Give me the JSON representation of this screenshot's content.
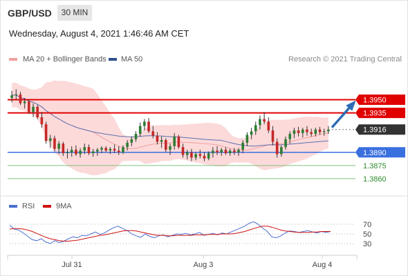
{
  "header": {
    "pair": "GBP/USD",
    "timeframe": "30 MIN"
  },
  "date_line": "Wednesday, August 4, 2021 1:46:46 AM CET",
  "legend": {
    "bollinger": "MA 20 + Bollinger Bands",
    "ma50": "MA 50",
    "copyright": "Research © 2021 Trading Central"
  },
  "rsi_legend": {
    "rsi": "RSI",
    "ma9": "9MA"
  },
  "colors": {
    "up": "#2e7d32",
    "down": "#c62828",
    "resistance": "#e00000",
    "support_blue": "#3a6fe0",
    "support_green": "#2e8b2e",
    "band_fill": "#fbd4d4",
    "ma20": "#f2a0a0",
    "ma50": "#5a6fb0",
    "rsi": "#4a6fd0",
    "rsi_ma": "#d01010",
    "current": "#333333",
    "arrow": "#2d6db5"
  },
  "chart_data": [
    {
      "type": "candlestick",
      "title": "GBP/USD",
      "ylim": [
        1.3845,
        1.3985
      ],
      "levels": [
        {
          "value": 1.395,
          "label": "1.3950",
          "kind": "resistance"
        },
        {
          "value": 1.3935,
          "label": "1.3935",
          "kind": "resistance"
        },
        {
          "value": 1.3916,
          "label": "1.3916",
          "kind": "current"
        },
        {
          "value": 1.389,
          "label": "1.3890",
          "kind": "support"
        },
        {
          "value": 1.3875,
          "label": "1.3875",
          "kind": "support"
        },
        {
          "value": 1.386,
          "label": "1.3860",
          "kind": "support"
        }
      ],
      "x_ticks": [
        "Jul 31",
        "Aug 3",
        "Aug 4"
      ],
      "projection": {
        "from": 1.3916,
        "to": 1.395
      },
      "series_candles": [
        [
          1.3952,
          1.396,
          1.3947,
          1.3955
        ],
        [
          1.3955,
          1.3962,
          1.395,
          1.3956
        ],
        [
          1.3956,
          1.3959,
          1.3944,
          1.3946
        ],
        [
          1.3946,
          1.3952,
          1.394,
          1.3948
        ],
        [
          1.3948,
          1.395,
          1.3934,
          1.3936
        ],
        [
          1.3936,
          1.3946,
          1.393,
          1.3942
        ],
        [
          1.3942,
          1.3944,
          1.3928,
          1.393
        ],
        [
          1.393,
          1.3936,
          1.3918,
          1.3922
        ],
        [
          1.3922,
          1.3925,
          1.39,
          1.3903
        ],
        [
          1.3903,
          1.391,
          1.3895,
          1.3906
        ],
        [
          1.3906,
          1.3909,
          1.3891,
          1.3894
        ],
        [
          1.3894,
          1.3903,
          1.3888,
          1.39
        ],
        [
          1.39,
          1.3902,
          1.3886,
          1.3889
        ],
        [
          1.3889,
          1.3894,
          1.3883,
          1.389
        ],
        [
          1.389,
          1.3897,
          1.3885,
          1.3893
        ],
        [
          1.3893,
          1.3898,
          1.3886,
          1.3888
        ],
        [
          1.3888,
          1.3895,
          1.3884,
          1.3892
        ],
        [
          1.3892,
          1.39,
          1.3888,
          1.3896
        ],
        [
          1.3896,
          1.3899,
          1.3887,
          1.3889
        ],
        [
          1.3889,
          1.3894,
          1.3885,
          1.3891
        ],
        [
          1.3891,
          1.3895,
          1.3886,
          1.3893
        ],
        [
          1.3893,
          1.3897,
          1.3889,
          1.3895
        ],
        [
          1.3895,
          1.3897,
          1.389,
          1.3892
        ],
        [
          1.3892,
          1.3896,
          1.3888,
          1.3894
        ],
        [
          1.3894,
          1.3899,
          1.3889,
          1.3892
        ],
        [
          1.3892,
          1.3897,
          1.3887,
          1.389
        ],
        [
          1.389,
          1.3898,
          1.3888,
          1.3896
        ],
        [
          1.3896,
          1.3904,
          1.3892,
          1.3901
        ],
        [
          1.3901,
          1.3908,
          1.3897,
          1.3905
        ],
        [
          1.3905,
          1.3914,
          1.3902,
          1.3911
        ],
        [
          1.3911,
          1.3924,
          1.3908,
          1.392
        ],
        [
          1.392,
          1.3928,
          1.3915,
          1.3925
        ],
        [
          1.3925,
          1.3929,
          1.3912,
          1.3914
        ],
        [
          1.3914,
          1.392,
          1.3906,
          1.3909
        ],
        [
          1.3909,
          1.3913,
          1.3899,
          1.3902
        ],
        [
          1.3902,
          1.3908,
          1.3895,
          1.3904
        ],
        [
          1.3904,
          1.3906,
          1.389,
          1.3893
        ],
        [
          1.3893,
          1.39,
          1.3887,
          1.3897
        ],
        [
          1.3897,
          1.3912,
          1.3893,
          1.3908
        ],
        [
          1.3908,
          1.391,
          1.3894,
          1.3896
        ],
        [
          1.3896,
          1.39,
          1.3884,
          1.3887
        ],
        [
          1.3887,
          1.3893,
          1.3882,
          1.389
        ],
        [
          1.389,
          1.3894,
          1.388,
          1.3884
        ],
        [
          1.3884,
          1.389,
          1.3881,
          1.3888
        ],
        [
          1.3888,
          1.3893,
          1.3883,
          1.3886
        ],
        [
          1.3886,
          1.389,
          1.388,
          1.3883
        ],
        [
          1.3883,
          1.3891,
          1.3881,
          1.3889
        ],
        [
          1.3889,
          1.3896,
          1.3884,
          1.3892
        ],
        [
          1.3892,
          1.3897,
          1.3887,
          1.389
        ],
        [
          1.389,
          1.3895,
          1.3886,
          1.3893
        ],
        [
          1.3893,
          1.3896,
          1.3887,
          1.3889
        ],
        [
          1.3889,
          1.3894,
          1.3886,
          1.3892
        ],
        [
          1.3892,
          1.3895,
          1.3887,
          1.389
        ],
        [
          1.389,
          1.3895,
          1.3886,
          1.3893
        ],
        [
          1.3893,
          1.3904,
          1.3889,
          1.3901
        ],
        [
          1.3901,
          1.3913,
          1.3897,
          1.391
        ],
        [
          1.391,
          1.3918,
          1.3905,
          1.3914
        ],
        [
          1.3914,
          1.3925,
          1.391,
          1.3921
        ],
        [
          1.3921,
          1.3932,
          1.3916,
          1.3928
        ],
        [
          1.3928,
          1.3936,
          1.3922,
          1.3925
        ],
        [
          1.3925,
          1.393,
          1.3912,
          1.3915
        ],
        [
          1.3915,
          1.392,
          1.3898,
          1.3902
        ],
        [
          1.3902,
          1.3906,
          1.3884,
          1.3888
        ],
        [
          1.3888,
          1.3898,
          1.3885,
          1.3896
        ],
        [
          1.3896,
          1.3908,
          1.3893,
          1.3905
        ],
        [
          1.3905,
          1.3914,
          1.39,
          1.3911
        ],
        [
          1.3911,
          1.3918,
          1.3906,
          1.3915
        ],
        [
          1.3915,
          1.3919,
          1.3908,
          1.3912
        ],
        [
          1.3912,
          1.3918,
          1.3907,
          1.3916
        ],
        [
          1.3916,
          1.392,
          1.3909,
          1.3913
        ],
        [
          1.3913,
          1.3917,
          1.3908,
          1.3911
        ],
        [
          1.3911,
          1.3918,
          1.3908,
          1.3916
        ],
        [
          1.3916,
          1.3919,
          1.391,
          1.3913
        ],
        [
          1.3913,
          1.3917,
          1.3909,
          1.3914
        ],
        [
          1.3914,
          1.392,
          1.3911,
          1.3916
        ]
      ]
    },
    {
      "type": "line",
      "title": "RSI",
      "ylim": [
        20,
        80
      ],
      "y_ticks": [
        70,
        50,
        30
      ],
      "series": [
        {
          "name": "RSI",
          "values": [
            68,
            60,
            58,
            52,
            45,
            38,
            36,
            40,
            33,
            30,
            36,
            32,
            35,
            40,
            44,
            42,
            47,
            46,
            50,
            54,
            49,
            52,
            58,
            63,
            66,
            61,
            57,
            50,
            46,
            43,
            50,
            45,
            42,
            46,
            48,
            44,
            47,
            50,
            49,
            51,
            48,
            50,
            53,
            47,
            49,
            51,
            48,
            52,
            50,
            54,
            58,
            62,
            66,
            72,
            75,
            70,
            62,
            55,
            44,
            42,
            46,
            52,
            56,
            55,
            53,
            55,
            57,
            54,
            52,
            55,
            53,
            55
          ]
        },
        {
          "name": "9MA",
          "values": [
            60,
            61,
            61,
            60,
            58,
            55,
            51,
            47,
            43,
            40,
            38,
            36,
            35,
            35,
            36,
            37,
            39,
            41,
            43,
            45,
            47,
            48,
            50,
            52,
            54,
            56,
            57,
            57,
            56,
            54,
            52,
            50,
            48,
            47,
            47,
            46,
            46,
            47,
            47,
            47,
            47,
            48,
            48,
            48,
            49,
            49,
            49,
            50,
            50,
            50,
            51,
            53,
            55,
            58,
            61,
            64,
            66,
            66,
            64,
            61,
            58,
            56,
            55,
            54,
            53,
            53,
            53,
            54,
            54,
            55,
            55,
            55
          ]
        }
      ],
      "x_ticks": [
        "Jul 31",
        "Aug 3",
        "Aug 4"
      ]
    }
  ]
}
